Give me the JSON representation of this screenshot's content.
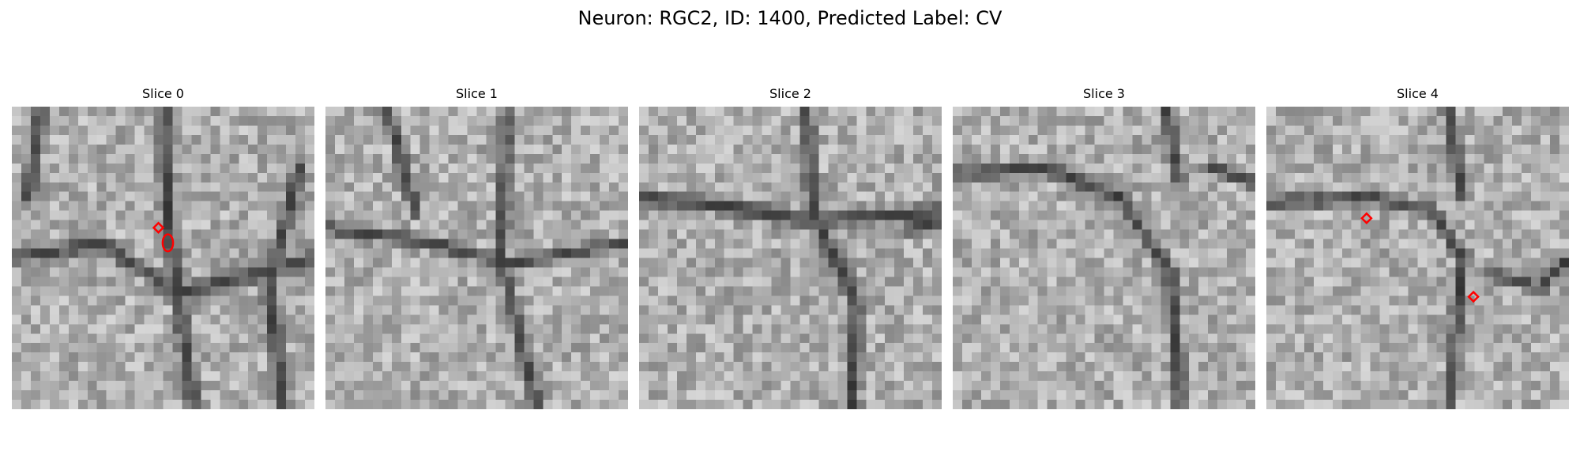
{
  "figure": {
    "title": "Neuron: RGC2, ID: 1400, Predicted Label: CV",
    "panels": [
      {
        "title": "Slice 0"
      },
      {
        "title": "Slice 1"
      },
      {
        "title": "Slice 2"
      },
      {
        "title": "Slice 3"
      },
      {
        "title": "Slice 4"
      }
    ]
  },
  "colors": {
    "background": "#ffffff",
    "marker": "#ff0000"
  }
}
